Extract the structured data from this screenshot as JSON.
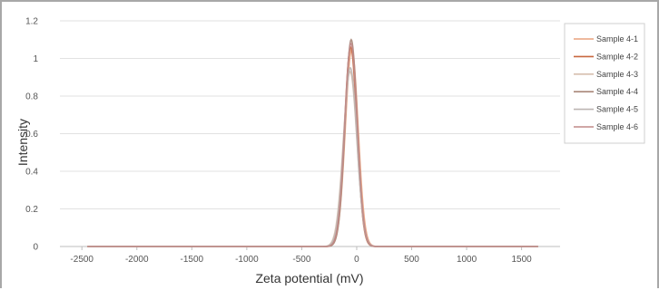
{
  "chart_data": {
    "type": "line",
    "title": "",
    "xlabel": "Zeta potential (mV)",
    "ylabel": "Intensity",
    "xlim": [
      -2700,
      1850
    ],
    "ylim": [
      0,
      1.2
    ],
    "x_ticks": [
      -2500,
      -2000,
      -1500,
      -1000,
      -500,
      0,
      500,
      1000,
      1500
    ],
    "y_ticks": [
      0,
      0.2,
      0.4,
      0.6,
      0.8,
      1,
      1.2
    ],
    "grid": true,
    "legend_position": "right",
    "series": [
      {
        "name": "Sample 4-1",
        "color": "#e9a27f",
        "peak_x": -45,
        "peak_y": 1.05,
        "sigma": 58,
        "x_range": [
          -2450,
          1650
        ]
      },
      {
        "name": "Sample 4-2",
        "color": "#c8673f",
        "peak_x": -55,
        "peak_y": 1.06,
        "sigma": 56,
        "x_range": [
          -2450,
          1650
        ]
      },
      {
        "name": "Sample 4-3",
        "color": "#d6bfae",
        "peak_x": -60,
        "peak_y": 0.93,
        "sigma": 62,
        "x_range": [
          -2450,
          1650
        ]
      },
      {
        "name": "Sample 4-4",
        "color": "#a98779",
        "peak_x": -50,
        "peak_y": 1.1,
        "sigma": 55,
        "x_range": [
          -2450,
          1650
        ]
      },
      {
        "name": "Sample 4-5",
        "color": "#bcb5b2",
        "peak_x": -58,
        "peak_y": 0.95,
        "sigma": 60,
        "x_range": [
          -2450,
          1650
        ]
      },
      {
        "name": "Sample 4-6",
        "color": "#c08a88",
        "peak_x": -52,
        "peak_y": 1.08,
        "sigma": 57,
        "x_range": [
          -2450,
          1650
        ]
      }
    ]
  }
}
